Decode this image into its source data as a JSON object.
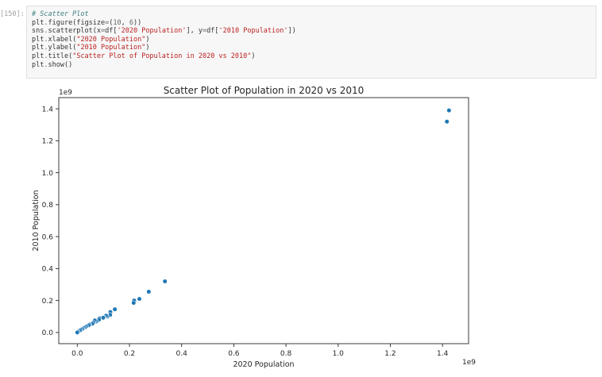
{
  "cell": {
    "prompt": "[150]:",
    "lines": [
      [
        {
          "c": "tok-comment",
          "t": "# Scatter Plot"
        }
      ],
      [
        {
          "c": "tok-name",
          "t": "plt"
        },
        {
          "c": "tok-op",
          "t": "."
        },
        {
          "c": "tok-name",
          "t": "figure"
        },
        {
          "c": "tok-punc",
          "t": "("
        },
        {
          "c": "tok-name",
          "t": "figsize"
        },
        {
          "c": "tok-op",
          "t": "="
        },
        {
          "c": "tok-punc",
          "t": "("
        },
        {
          "c": "tok-num",
          "t": "10"
        },
        {
          "c": "tok-punc",
          "t": ", "
        },
        {
          "c": "tok-num",
          "t": "6"
        },
        {
          "c": "tok-punc",
          "t": "))"
        }
      ],
      [
        {
          "c": "tok-name",
          "t": "sns"
        },
        {
          "c": "tok-op",
          "t": "."
        },
        {
          "c": "tok-name",
          "t": "scatterplot"
        },
        {
          "c": "tok-punc",
          "t": "("
        },
        {
          "c": "tok-name",
          "t": "x"
        },
        {
          "c": "tok-op",
          "t": "="
        },
        {
          "c": "tok-name",
          "t": "df"
        },
        {
          "c": "tok-punc",
          "t": "["
        },
        {
          "c": "tok-str",
          "t": "'2020 Population'"
        },
        {
          "c": "tok-punc",
          "t": "], "
        },
        {
          "c": "tok-name",
          "t": "y"
        },
        {
          "c": "tok-op",
          "t": "="
        },
        {
          "c": "tok-name",
          "t": "df"
        },
        {
          "c": "tok-punc",
          "t": "["
        },
        {
          "c": "tok-str",
          "t": "'2010 Population'"
        },
        {
          "c": "tok-punc",
          "t": "])"
        }
      ],
      [
        {
          "c": "tok-name",
          "t": "plt"
        },
        {
          "c": "tok-op",
          "t": "."
        },
        {
          "c": "tok-name",
          "t": "xlabel"
        },
        {
          "c": "tok-punc",
          "t": "("
        },
        {
          "c": "tok-str",
          "t": "\"2020 Population\""
        },
        {
          "c": "tok-punc",
          "t": ")"
        }
      ],
      [
        {
          "c": "tok-name",
          "t": "plt"
        },
        {
          "c": "tok-op",
          "t": "."
        },
        {
          "c": "tok-name",
          "t": "ylabel"
        },
        {
          "c": "tok-punc",
          "t": "("
        },
        {
          "c": "tok-str",
          "t": "\"2010 Population\""
        },
        {
          "c": "tok-punc",
          "t": ")"
        }
      ],
      [
        {
          "c": "tok-name",
          "t": "plt"
        },
        {
          "c": "tok-op",
          "t": "."
        },
        {
          "c": "tok-name",
          "t": "title"
        },
        {
          "c": "tok-punc",
          "t": "("
        },
        {
          "c": "tok-str",
          "t": "\"Scatter Plot of Population in 2020 vs 2010\""
        },
        {
          "c": "tok-punc",
          "t": ")"
        }
      ],
      [
        {
          "c": "tok-name",
          "t": "plt"
        },
        {
          "c": "tok-op",
          "t": "."
        },
        {
          "c": "tok-name",
          "t": "show"
        },
        {
          "c": "tok-punc",
          "t": "()"
        }
      ]
    ]
  },
  "chart_data": {
    "type": "scatter",
    "title": "Scatter Plot of Population in 2020 vs 2010",
    "xlabel": "2020 Population",
    "ylabel": "2010 Population",
    "x_offset_text": "1e9",
    "y_offset_text": "1e9",
    "xlim": [
      -0.071,
      1.5
    ],
    "ylim": [
      -0.07,
      1.47
    ],
    "xticks": [
      0.0,
      0.2,
      0.4,
      0.6,
      0.8,
      1.0,
      1.2,
      1.4
    ],
    "xtick_labels": [
      "0.0",
      "0.2",
      "0.4",
      "0.6",
      "0.8",
      "1.0",
      "1.2",
      "1.4"
    ],
    "yticks": [
      0.0,
      0.2,
      0.4,
      0.6,
      0.8,
      1.0,
      1.2,
      1.4
    ],
    "ytick_labels": [
      "0.0",
      "0.2",
      "0.4",
      "0.6",
      "0.8",
      "1.0",
      "1.2",
      "1.4"
    ],
    "grid": false,
    "marker_color": "#1f77b4",
    "x": [
      1.425,
      1.417,
      0.336,
      0.274,
      0.238,
      0.218,
      0.216,
      0.144,
      0.127,
      0.126,
      0.115,
      0.11,
      0.102,
      0.099,
      0.085,
      0.083,
      0.073,
      0.067,
      0.062,
      0.058,
      0.047,
      0.044,
      0.035,
      0.03,
      0.024,
      0.02,
      0.015,
      0.01,
      0.003,
      0.0
    ],
    "y": [
      1.39,
      1.32,
      0.32,
      0.255,
      0.21,
      0.2,
      0.185,
      0.145,
      0.128,
      0.11,
      0.1,
      0.105,
      0.095,
      0.092,
      0.088,
      0.08,
      0.07,
      0.075,
      0.062,
      0.055,
      0.05,
      0.045,
      0.038,
      0.032,
      0.028,
      0.022,
      0.018,
      0.012,
      0.005,
      0.0
    ]
  }
}
